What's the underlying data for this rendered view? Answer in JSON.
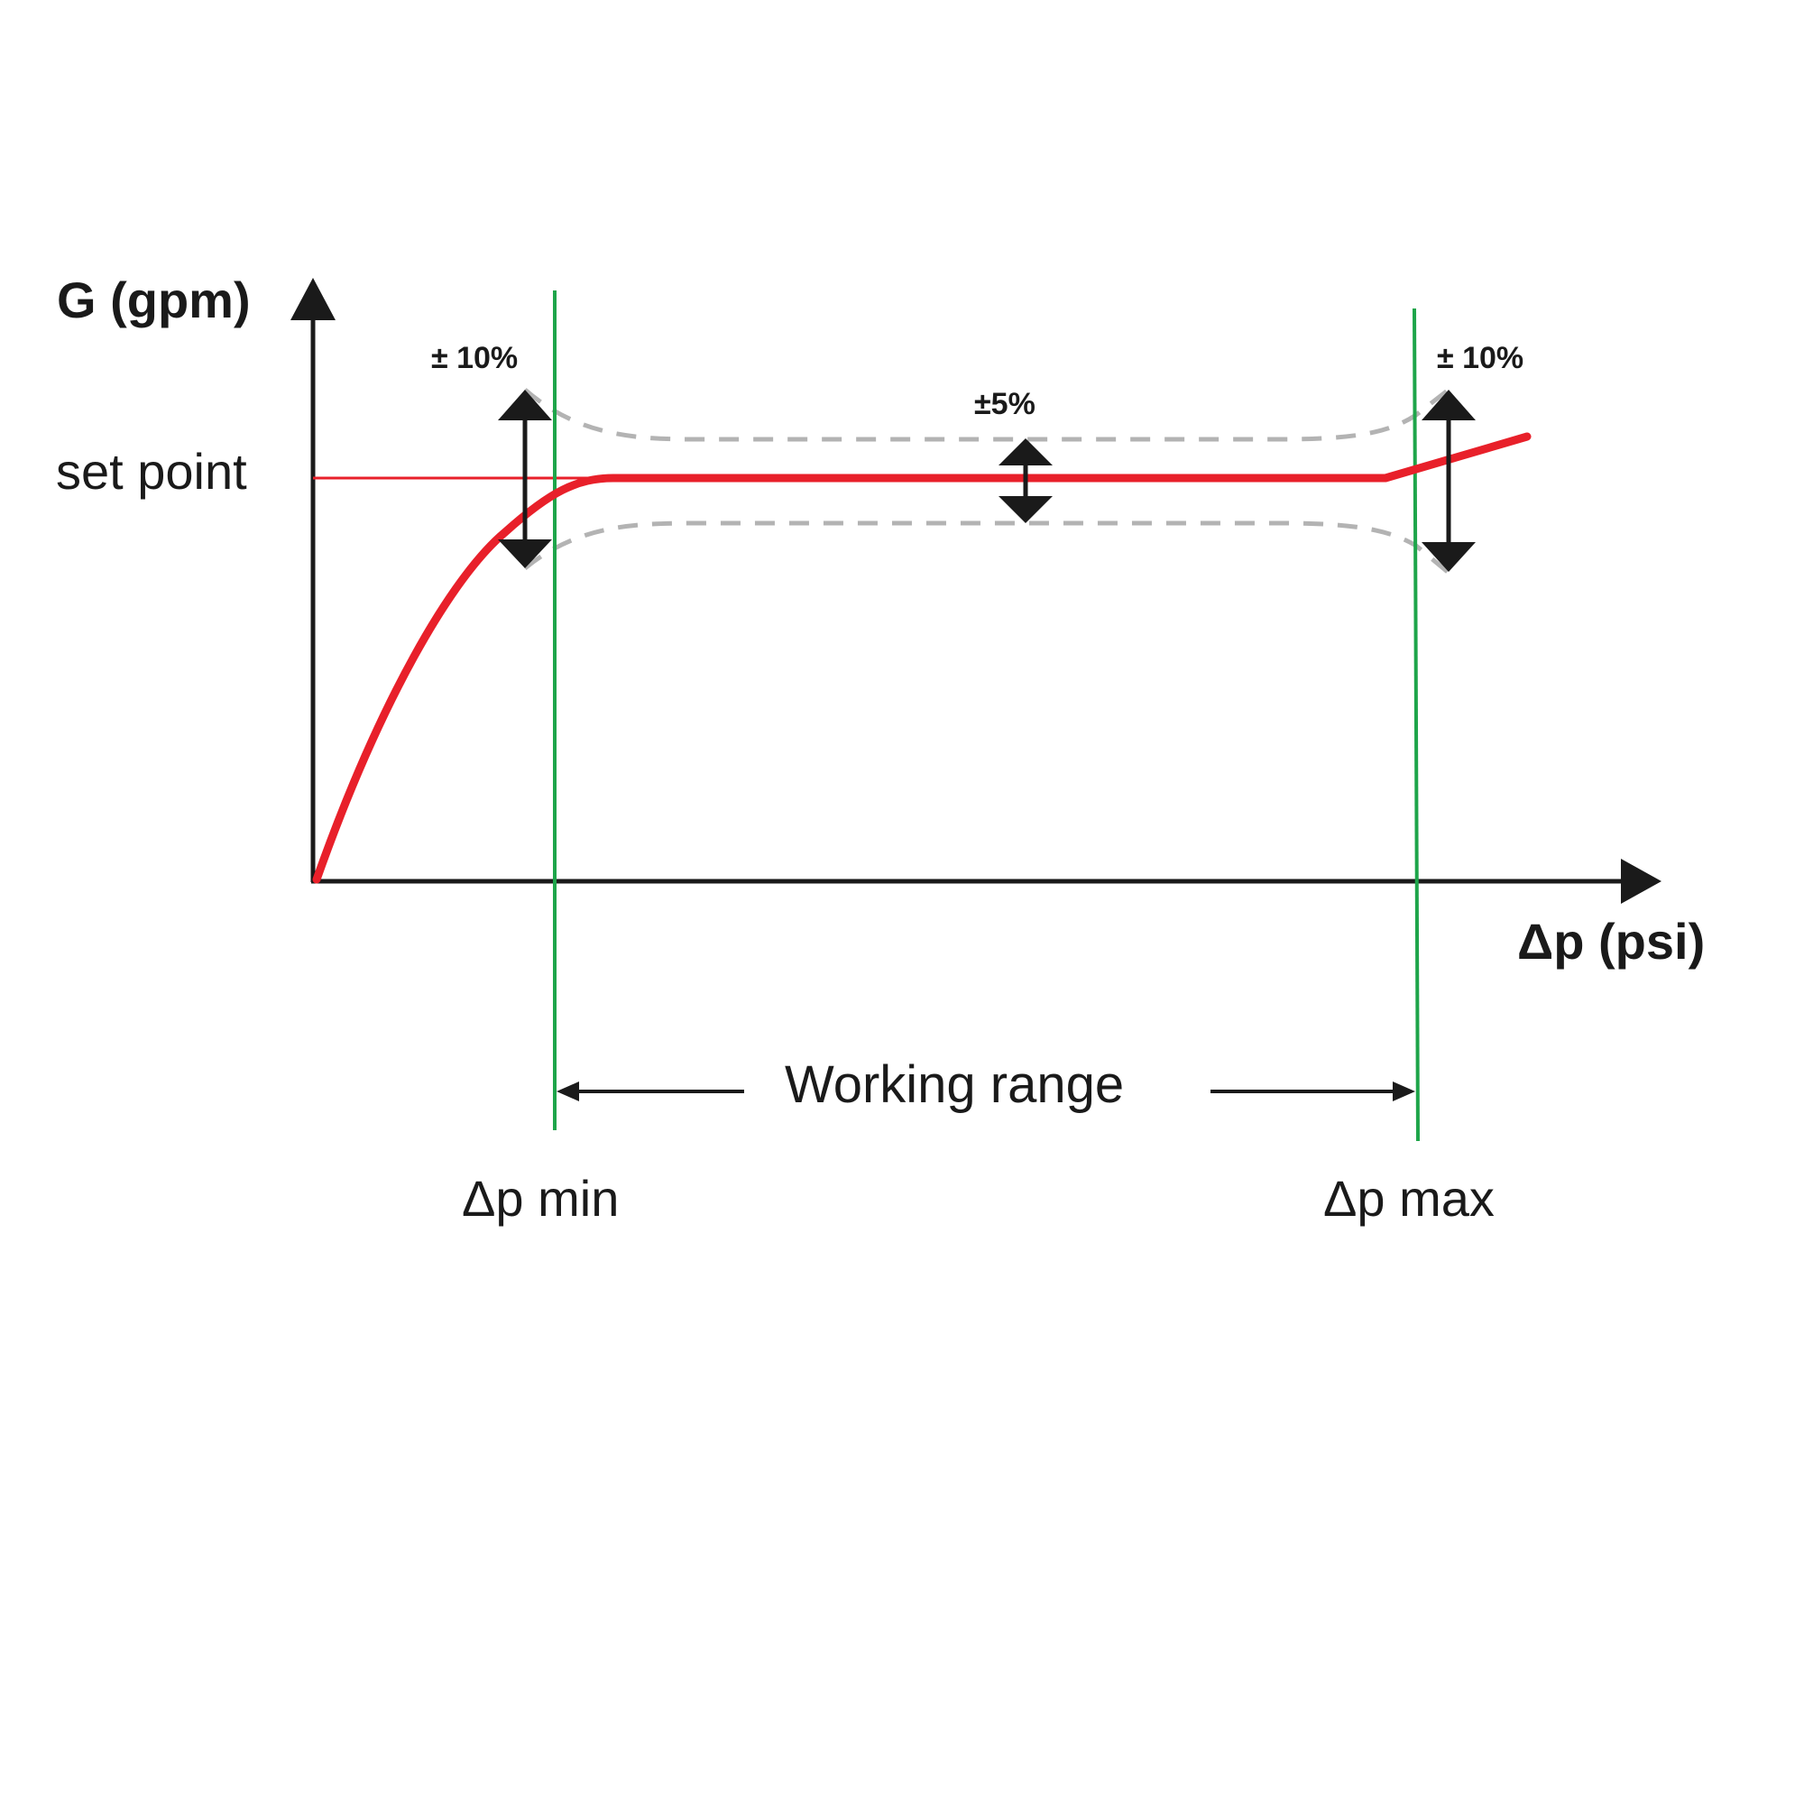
{
  "axes": {
    "y_label": "G (gpm)",
    "x_label": "Δp (psi)"
  },
  "set_point_label": "set point",
  "tolerance": {
    "left": "± 10%",
    "middle": "±5%",
    "right": "± 10%"
  },
  "working_range_label": "Working range",
  "dp_min_label": "Δp min",
  "dp_max_label": "Δp max",
  "colors": {
    "flow_curve": "#e8202a",
    "range_limits": "#1ea54a",
    "tolerance_band": "#b3b3b3",
    "axes_and_text": "#1a1a1a"
  }
}
